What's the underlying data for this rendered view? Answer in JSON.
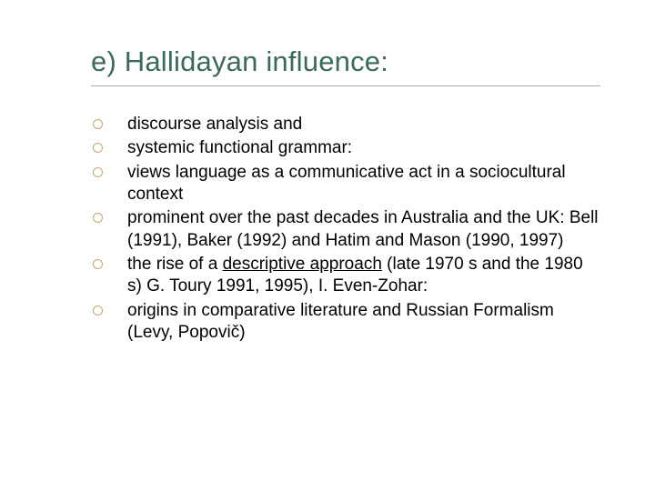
{
  "slide": {
    "title": "e) Hallidayan influence:",
    "title_color": "#3a6a5a",
    "title_fontsize": 31,
    "rule_color": "#aaaaaa",
    "bullet_outline_color": "#c7a86a",
    "body_fontsize": 19,
    "body_color": "#000000",
    "background_color": "#ffffff",
    "bullets": [
      {
        "text": "discourse analysis and"
      },
      {
        "text": "systemic functional grammar:"
      },
      {
        "text": "views language as a communicative act in a sociocultural context"
      },
      {
        "text": "prominent over the past decades in Australia and the UK: Bell (1991), Baker (1992) and Hatim and Mason (1990, 1997)"
      },
      {
        "prefix": "the rise of a ",
        "underlined": "descriptive approach",
        "suffix": " (late 1970 s and the 1980 s) G. Toury 1991, 1995), I. Even-Zohar:"
      },
      {
        "text": "origins in comparative literature and Russian Formalism (Levy, Popovič)"
      }
    ]
  }
}
